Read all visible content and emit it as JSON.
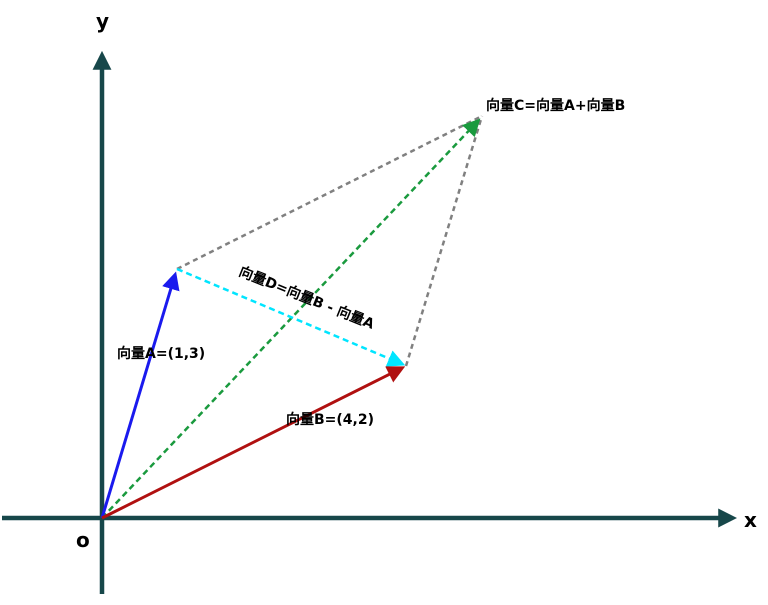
{
  "axes": {
    "x_label": "x",
    "y_label": "y",
    "origin_label": "o",
    "color": "#17474a"
  },
  "vectors": {
    "a": {
      "label": "向量A=(1,3)",
      "components": [
        1,
        3
      ],
      "color": "#1a1aee",
      "style": "solid"
    },
    "b": {
      "label": "向量B=(4,2)",
      "components": [
        4,
        2
      ],
      "color": "#b01010",
      "style": "solid"
    },
    "c": {
      "label": "向量C=向量A+向量B",
      "components": [
        5,
        5
      ],
      "color": "#1a9a3e",
      "style": "dashed"
    },
    "d": {
      "label": "向量D=向量B - 向量A",
      "components": [
        3,
        -1
      ],
      "color": "#00e5ff",
      "style": "dashed"
    }
  },
  "guide_line_color": "#808080"
}
